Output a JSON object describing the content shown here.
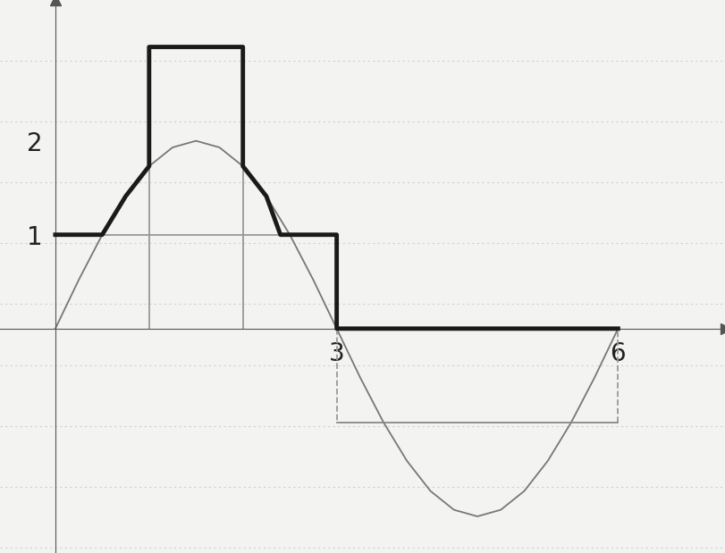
{
  "chart_data": {
    "type": "line",
    "xlim": [
      -0.59,
      7.15
    ],
    "ylim": [
      -2.39,
      3.5
    ],
    "xticks": [
      3,
      6
    ],
    "yticks": [
      1,
      2
    ],
    "grid": false,
    "series": [
      {
        "color": "#777777",
        "line_style": "solid",
        "x": [
          0,
          0.25,
          0.5,
          0.75,
          1,
          1.25,
          1.5,
          1.75,
          2,
          2.25,
          2.5,
          2.75,
          3,
          3.25,
          3.5,
          3.75,
          4,
          4.25,
          4.5,
          4.75,
          5,
          5.25,
          5.5,
          5.75,
          6
        ],
        "values": [
          0,
          0.52,
          1.0,
          1.41,
          1.73,
          1.93,
          2.0,
          1.93,
          1.73,
          1.41,
          1.0,
          0.52,
          0,
          -0.52,
          -1.0,
          -1.41,
          -1.73,
          -1.93,
          -2.0,
          -1.93,
          -1.73,
          -1.41,
          -1.0,
          -0.52,
          0
        ]
      },
      {
        "color": "#1a1a1a",
        "line_style": "solid",
        "x": [
          0,
          0.5,
          0.75,
          1,
          1,
          2,
          2,
          2.25,
          2.4,
          3,
          3,
          6
        ],
        "values": [
          1,
          1,
          1.41,
          1.73,
          3.0,
          3.0,
          1.73,
          1.41,
          1.0,
          1.0,
          0,
          0
        ]
      },
      {
        "color": "#999999",
        "line_style": "solid",
        "x": [
          0,
          3
        ],
        "values": [
          1,
          1
        ]
      },
      {
        "color": "#999999",
        "line_style": "solid",
        "x": [
          1,
          1,
          1,
          2,
          2
        ],
        "values": [
          0,
          1.73,
          null,
          1.73,
          0
        ]
      },
      {
        "color": "#999999",
        "line_style": "dashed",
        "x": [
          3,
          3,
          3,
          6,
          6
        ],
        "values": [
          0,
          -1.0,
          null,
          -1.0,
          0
        ]
      },
      {
        "color": "#888888",
        "line_style": "solid",
        "x": [
          3,
          6
        ],
        "values": [
          -1.0,
          -1.0
        ]
      }
    ]
  }
}
